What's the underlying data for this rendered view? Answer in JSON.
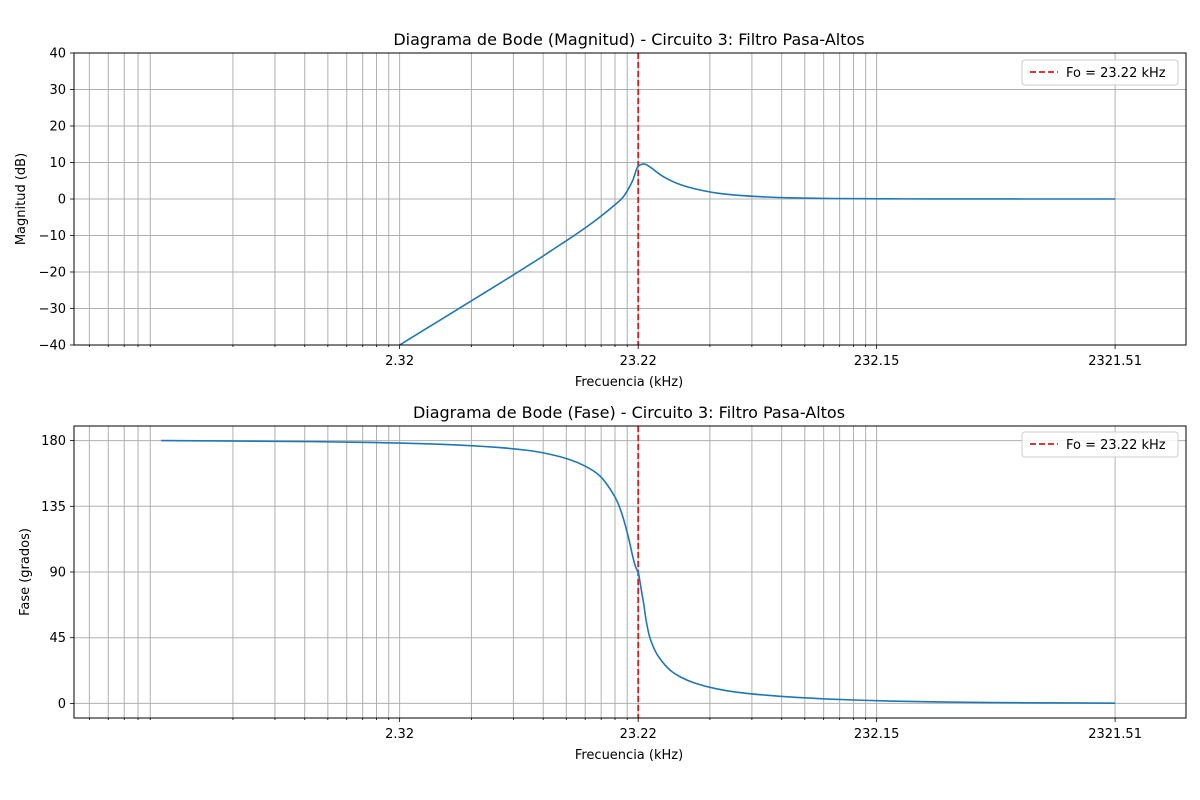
{
  "colors": {
    "line": "#1f77b4",
    "vline": "#e31a1c",
    "grid": "#b0b0b0",
    "axes": "#000000"
  },
  "chart_data": [
    {
      "type": "line",
      "title": "Diagrama de Bode (Magnitud) - Circuito 3: Filtro Pasa-Altos",
      "xlabel": "Frecuencia (kHz)",
      "ylabel": "Magnitud (dB)",
      "xscale": "log",
      "xlim": [
        0.1,
        4603
      ],
      "ylim": [
        -40,
        40
      ],
      "xticks": [
        2.32,
        23.22,
        232.15,
        2321.51
      ],
      "xtick_labels": [
        "2.32",
        "23.22",
        "232.15",
        "2321.51"
      ],
      "yticks": [
        -40,
        -30,
        -20,
        -10,
        0,
        10,
        20,
        30,
        40
      ],
      "ytick_labels": [
        "−40",
        "−30",
        "−20",
        "−10",
        "0",
        "10",
        "20",
        "30",
        "40"
      ],
      "grid": true,
      "legend_position": "top-right",
      "reference_line": {
        "label": "Fo = 23.22 kHz",
        "x": 23.22
      },
      "series": [
        {
          "x": [
            2.32,
            3.0,
            4.0,
            5.0,
            6.0,
            7.0,
            8.0,
            9.0,
            10.0,
            12.0,
            14.0,
            16.0,
            18.0,
            20.0,
            22.0,
            23.22,
            24.5,
            26.0,
            28.0,
            30.0,
            35.0,
            40.0,
            50.0,
            60.0,
            80.0,
            100.0,
            150.0,
            200.0,
            300.0,
            500.0,
            1000.0,
            2321.51
          ],
          "y": [
            -40.0,
            -35.5,
            -30.5,
            -26.6,
            -23.4,
            -20.7,
            -18.3,
            -16.2,
            -14.2,
            -10.8,
            -7.8,
            -5.0,
            -2.3,
            0.4,
            5.0,
            9.0,
            9.6,
            8.8,
            7.2,
            5.9,
            3.9,
            2.8,
            1.6,
            1.05,
            0.55,
            0.33,
            0.14,
            0.08,
            0.035,
            0.013,
            0.003,
            0.0
          ]
        }
      ]
    },
    {
      "type": "line",
      "title": "Diagrama de Bode (Fase) - Circuito 3: Filtro Pasa-Altos",
      "xlabel": "Frecuencia (kHz)",
      "ylabel": "Fase (grados)",
      "xscale": "log",
      "xlim": [
        0.1,
        4603
      ],
      "ylim": [
        -10,
        190
      ],
      "xticks": [
        2.32,
        23.22,
        232.15,
        2321.51
      ],
      "xtick_labels": [
        "2.32",
        "23.22",
        "232.15",
        "2321.51"
      ],
      "yticks": [
        0,
        45,
        90,
        135,
        180
      ],
      "ytick_labels": [
        "0",
        "45",
        "90",
        "135",
        "180"
      ],
      "grid": true,
      "legend_position": "top-right",
      "reference_line": {
        "label": "Fo = 23.22 kHz",
        "x": 23.22
      },
      "series": [
        {
          "x": [
            0.232,
            0.5,
            1.0,
            2.32,
            4.0,
            6.0,
            8.0,
            10.0,
            12.0,
            14.0,
            16.0,
            18.0,
            19.0,
            20.0,
            21.0,
            21.5,
            22.0,
            22.5,
            23.0,
            23.22,
            23.5,
            24.0,
            24.5,
            25.0,
            26.0,
            27.0,
            28.0,
            30.0,
            32.0,
            35.0,
            40.0,
            50.0,
            60.0,
            80.0,
            100.0,
            150.0,
            200.0,
            300.0,
            500.0,
            1000.0,
            2321.51
          ],
          "y": [
            180.0,
            179.7,
            179.3,
            178.3,
            177.0,
            175.3,
            173.3,
            170.5,
            167.0,
            162.3,
            156.0,
            145.0,
            138.0,
            128.0,
            115.5,
            108.5,
            101.0,
            95.0,
            91.0,
            90.0,
            85.5,
            76.5,
            68.0,
            58.0,
            45.0,
            38.0,
            33.0,
            26.5,
            22.0,
            18.0,
            14.0,
            9.8,
            7.7,
            5.6,
            4.4,
            2.9,
            2.15,
            1.4,
            0.85,
            0.42,
            0.18
          ]
        }
      ]
    }
  ]
}
